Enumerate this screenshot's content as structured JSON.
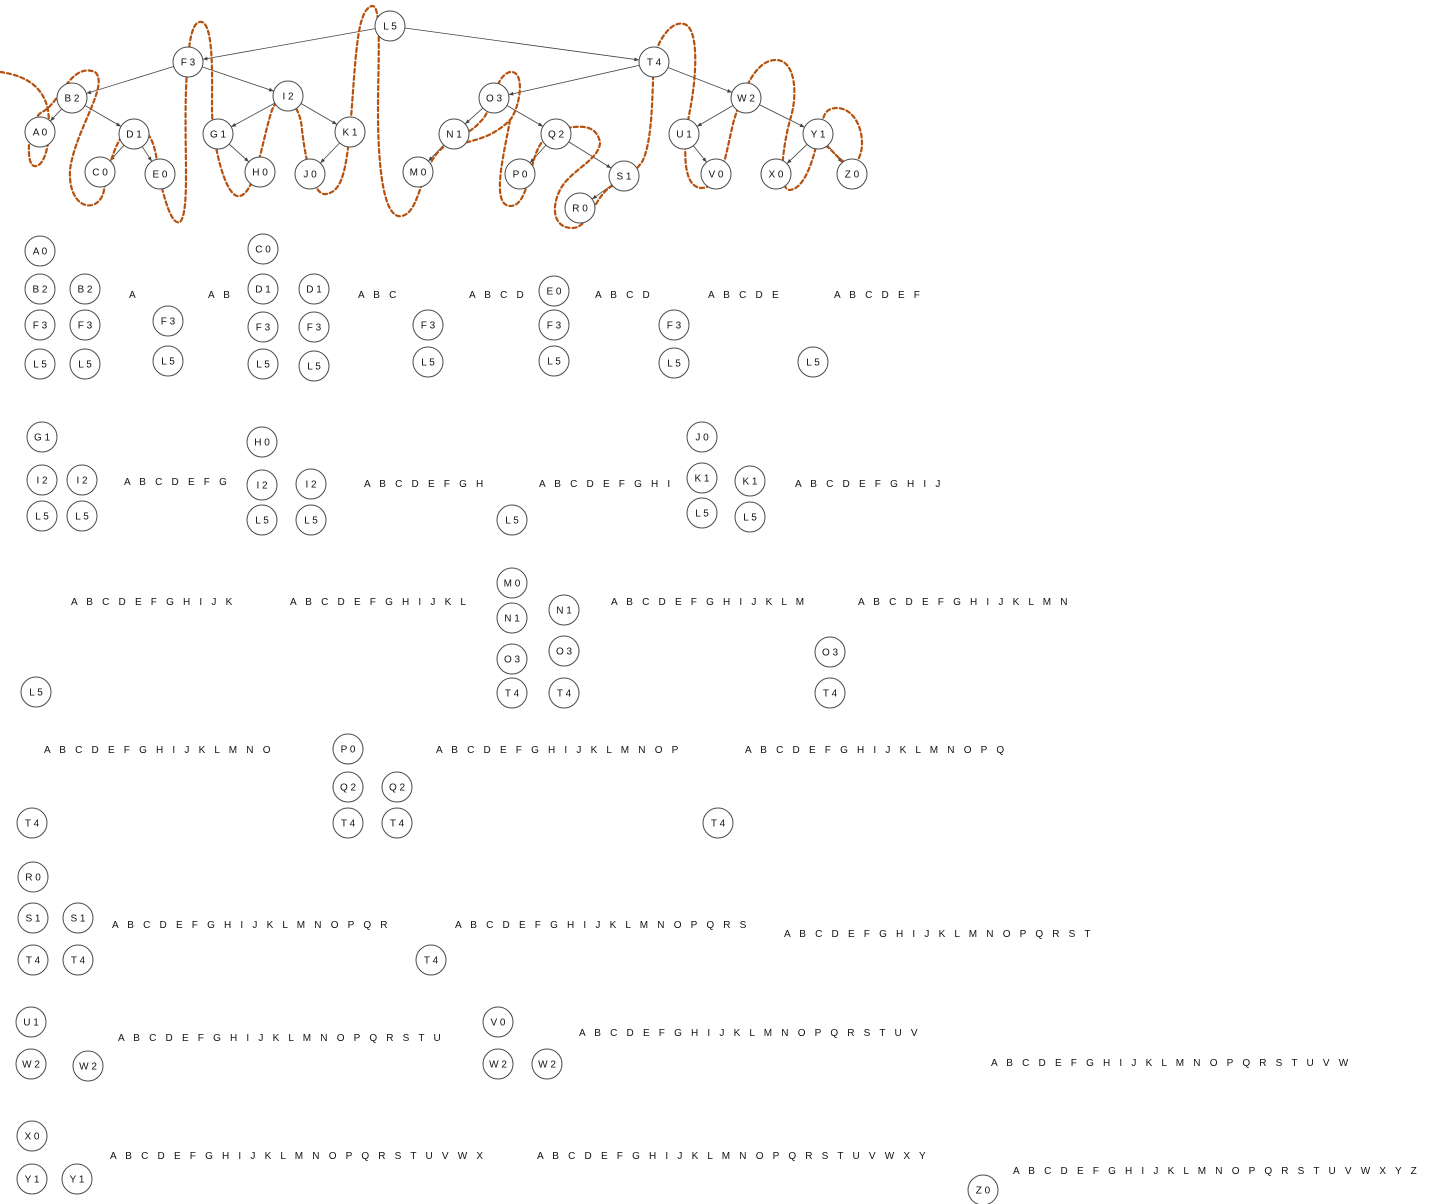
{
  "tree": {
    "nodes": [
      {
        "id": "L",
        "label": "L 5"
      },
      {
        "id": "F",
        "label": "F 3"
      },
      {
        "id": "T",
        "label": "T 4"
      },
      {
        "id": "B",
        "label": "B 2"
      },
      {
        "id": "I",
        "label": "I 2"
      },
      {
        "id": "O",
        "label": "O 3"
      },
      {
        "id": "W",
        "label": "W 2"
      },
      {
        "id": "A",
        "label": "A 0"
      },
      {
        "id": "D",
        "label": "D 1"
      },
      {
        "id": "G",
        "label": "G 1"
      },
      {
        "id": "K",
        "label": "K 1"
      },
      {
        "id": "N",
        "label": "N 1"
      },
      {
        "id": "Q",
        "label": "Q 2"
      },
      {
        "id": "U",
        "label": "U 1"
      },
      {
        "id": "Y",
        "label": "Y 1"
      },
      {
        "id": "C",
        "label": "C 0"
      },
      {
        "id": "E",
        "label": "E 0"
      },
      {
        "id": "H",
        "label": "H 0"
      },
      {
        "id": "J",
        "label": "J 0"
      },
      {
        "id": "M",
        "label": "M 0"
      },
      {
        "id": "P",
        "label": "P 0"
      },
      {
        "id": "S",
        "label": "S 1"
      },
      {
        "id": "V",
        "label": "V 0"
      },
      {
        "id": "X",
        "label": "X 0"
      },
      {
        "id": "Z",
        "label": "Z 0"
      },
      {
        "id": "R",
        "label": "R 0"
      }
    ],
    "edges": [
      [
        "L",
        "F"
      ],
      [
        "L",
        "T"
      ],
      [
        "F",
        "B"
      ],
      [
        "F",
        "I"
      ],
      [
        "B",
        "A"
      ],
      [
        "B",
        "D"
      ],
      [
        "D",
        "C"
      ],
      [
        "D",
        "E"
      ],
      [
        "I",
        "G"
      ],
      [
        "I",
        "K"
      ],
      [
        "G",
        "H"
      ],
      [
        "K",
        "J"
      ],
      [
        "T",
        "O"
      ],
      [
        "T",
        "W"
      ],
      [
        "O",
        "N"
      ],
      [
        "O",
        "Q"
      ],
      [
        "N",
        "M"
      ],
      [
        "Q",
        "P"
      ],
      [
        "Q",
        "S"
      ],
      [
        "S",
        "R"
      ],
      [
        "W",
        "U"
      ],
      [
        "W",
        "Y"
      ],
      [
        "U",
        "V"
      ],
      [
        "Y",
        "X"
      ],
      [
        "Y",
        "Z"
      ]
    ]
  },
  "stacks": [
    {
      "id": "s1",
      "labels": [
        "A 0",
        "B 2",
        "F 3",
        "L 5"
      ]
    },
    {
      "id": "s2",
      "labels": [
        "B 2",
        "F 3",
        "L 5"
      ]
    },
    {
      "id": "s3",
      "labels": [
        "F 3",
        "L 5"
      ]
    },
    {
      "id": "s4",
      "labels": [
        "C 0",
        "D 1",
        "F 3",
        "L 5"
      ]
    },
    {
      "id": "s5",
      "labels": [
        "D 1",
        "F 3",
        "L 5"
      ]
    },
    {
      "id": "s6",
      "labels": [
        "F 3",
        "L 5"
      ]
    },
    {
      "id": "s7",
      "labels": [
        "E 0",
        "F 3",
        "L 5"
      ]
    },
    {
      "id": "s8",
      "labels": [
        "F 3",
        "L 5"
      ]
    },
    {
      "id": "s9",
      "labels": [
        "L 5"
      ]
    },
    {
      "id": "s10",
      "labels": [
        "G 1",
        "I 2",
        "L 5"
      ]
    },
    {
      "id": "s11",
      "labels": [
        "I 2",
        "L 5"
      ]
    },
    {
      "id": "s12",
      "labels": [
        "H 0",
        "I 2",
        "L 5"
      ]
    },
    {
      "id": "s13",
      "labels": [
        "I 2",
        "L 5"
      ]
    },
    {
      "id": "s14",
      "labels": [
        "L 5"
      ]
    },
    {
      "id": "s15",
      "labels": [
        "J 0",
        "K 1",
        "L 5"
      ]
    },
    {
      "id": "s16",
      "labels": [
        "K 1",
        "L 5"
      ]
    },
    {
      "id": "s17",
      "labels": [
        "M 0",
        "N 1",
        "O 3",
        "T 4"
      ]
    },
    {
      "id": "s18",
      "labels": [
        "N 1",
        "O 3",
        "T 4"
      ]
    },
    {
      "id": "s19",
      "labels": [
        "O 3",
        "T 4"
      ]
    },
    {
      "id": "s20",
      "labels": [
        "L 5"
      ]
    },
    {
      "id": "s21",
      "labels": [
        "P 0",
        "Q 2",
        "T 4"
      ]
    },
    {
      "id": "s22",
      "labels": [
        "Q 2",
        "T 4"
      ]
    },
    {
      "id": "s23",
      "labels": [
        "T 4"
      ]
    },
    {
      "id": "s24",
      "labels": [
        "T 4"
      ]
    },
    {
      "id": "s25",
      "labels": [
        "R 0",
        "S 1",
        "T 4"
      ]
    },
    {
      "id": "s26",
      "labels": [
        "S 1",
        "T 4"
      ]
    },
    {
      "id": "s27",
      "labels": [
        "T 4"
      ]
    },
    {
      "id": "s28",
      "labels": [
        "U 1",
        "W 2"
      ]
    },
    {
      "id": "s29",
      "labels": [
        "W 2"
      ]
    },
    {
      "id": "s30",
      "labels": [
        "V 0",
        "W 2"
      ]
    },
    {
      "id": "s31",
      "labels": [
        "W 2"
      ]
    },
    {
      "id": "s32",
      "labels": [
        "X 0",
        "Y 1"
      ]
    },
    {
      "id": "s33",
      "labels": [
        "Y 1"
      ]
    },
    {
      "id": "s34",
      "labels": [
        "Z 0"
      ]
    }
  ],
  "sequences": [
    "A",
    "A B",
    "A B C",
    "A B C D",
    "A B C D",
    "A B C D E",
    "A B C D E F",
    "A B C D E F G",
    "A B C D E F G H",
    "A B C D E F G H I",
    "A B C D E F G H I J",
    "A B C D E F G H I J K",
    "A B C D E F G H I J K L",
    "A B C D E F G H I J K L M",
    "A B C D E F G H I J K L M N",
    "A B C D E F G H I J K L M N O",
    "A B C D E F G H I J K L M N O P",
    "A B C D E F G H I J K L M N O P Q",
    "A B C D E F G H I J K L M N O P Q R",
    "A B C D E F G H I J K L M N O P Q R S",
    "A B C D E F G H I J K L M N O P Q R S T",
    "A B C D E F G H I J K L M N O P Q R S T U",
    "A B C D E F G H I J K L M N O P Q R S T U V",
    "A B C D E F G H I J K L M N O P Q R S T U V W",
    "A B C D E F G H I J K L M N O P Q R S T U V W X",
    "A B C D E F G H I J K L M N O P Q R S T U V W X Y",
    "A B C D E F G H I J K L M N O P Q R S T U V W X Y Z"
  ],
  "colors": {
    "thread": "#b5520f",
    "node_stroke": "#4a4a4a",
    "edge": "#444444"
  }
}
